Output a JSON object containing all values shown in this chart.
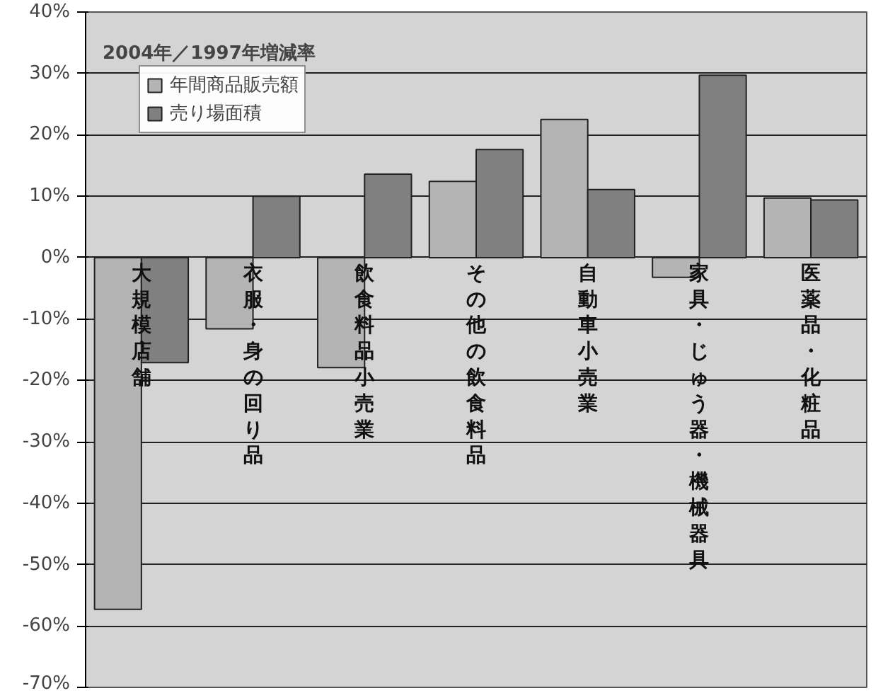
{
  "chart_data": {
    "type": "bar",
    "title": "2004年／1997年増減率",
    "categories": [
      "大規模店舗",
      "衣服・身の回り品",
      "飲食料品小売業",
      "その他の飲食料品",
      "自動車小売業",
      "家具・じゅう器・機械器具",
      "医薬品・化粧品"
    ],
    "series": [
      {
        "name": "年間商品販売額",
        "color": "#b4b4b4",
        "values": [
          -57.3,
          -11.6,
          -17.9,
          12.4,
          22.5,
          -3.2,
          9.7
        ]
      },
      {
        "name": "売り場面積",
        "color": "#808080",
        "values": [
          -17.1,
          10,
          13.6,
          17.6,
          11.1,
          29.7,
          9.4
        ]
      }
    ],
    "ylim": [
      -70,
      40
    ],
    "yticks": [
      {
        "value": -70,
        "label": "-70%"
      },
      {
        "value": -60,
        "label": "-60%"
      },
      {
        "value": -50,
        "label": "-50%"
      },
      {
        "value": -40,
        "label": "-40%"
      },
      {
        "value": -30,
        "label": "-30%"
      },
      {
        "value": -20,
        "label": "-20%"
      },
      {
        "value": -10,
        "label": "-10%"
      },
      {
        "value": 0,
        "label": "0%"
      },
      {
        "value": 10,
        "label": "10%"
      },
      {
        "value": 20,
        "label": "20%"
      },
      {
        "value": 30,
        "label": "30%"
      },
      {
        "value": 40,
        "label": "40%"
      }
    ],
    "grid": "y",
    "legend": "top left",
    "tick_labels": "y"
  }
}
